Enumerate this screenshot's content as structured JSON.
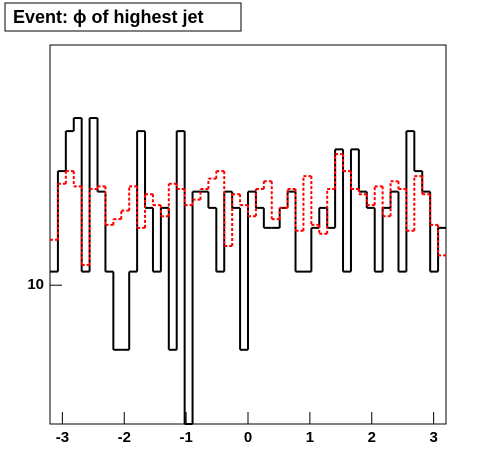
{
  "chart_data": {
    "type": "histogram",
    "title": "Event: ϕ of highest jet",
    "bins": [
      -3.2,
      -3.072,
      -2.944,
      -2.816,
      -2.688,
      -2.56,
      -2.432,
      -2.304,
      -2.176,
      -2.048,
      -1.92,
      -1.792,
      -1.664,
      -1.536,
      -1.408,
      -1.28,
      -1.152,
      -1.024,
      -0.896,
      -0.768,
      -0.64,
      -0.512,
      -0.384,
      -0.256,
      -0.128,
      0,
      0.128,
      0.256,
      0.384,
      0.512,
      0.64,
      0.768,
      0.896,
      1.024,
      1.152,
      1.28,
      1.408,
      1.536,
      1.664,
      1.792,
      1.92,
      2.048,
      2.176,
      2.304,
      2.432,
      2.56,
      2.688,
      2.816,
      2.944,
      3.072,
      3.2
    ],
    "series": [
      {
        "color": "#000000",
        "dashed": false,
        "values": [
          10.4,
          13.9,
          15.6,
          16.2,
          10.4,
          16.2,
          13.1,
          10.4,
          8.3,
          8.3,
          10.4,
          15.6,
          12.5,
          10.4,
          12.5,
          8.3,
          15.6,
          6.7,
          13.1,
          13.1,
          12.5,
          10.4,
          13.1,
          12.5,
          8.3,
          13.1,
          12.5,
          11.8,
          11.8,
          12.5,
          13.1,
          10.4,
          10.4,
          11.8,
          12.5,
          11.8,
          14.8,
          10.4,
          14.8,
          13.1,
          12.5,
          10.4,
          12.5,
          13.1,
          10.4,
          15.6,
          13.9,
          13.1,
          10.4,
          11.8
        ]
      },
      {
        "color": "#ff0000",
        "dashed": true,
        "values": [
          11.4,
          13.4,
          13.9,
          13.3,
          10.6,
          13.2,
          13.3,
          11.9,
          12.1,
          12.4,
          13.3,
          11.8,
          13.0,
          12.6,
          12.2,
          13.4,
          13.2,
          12.6,
          12.8,
          13.2,
          13.6,
          13.9,
          11.2,
          13.0,
          12.6,
          12.2,
          13.2,
          13.5,
          12.1,
          12.5,
          13.2,
          11.7,
          13.7,
          11.9,
          11.6,
          13.2,
          14.6,
          13.9,
          13.2,
          13.0,
          12.6,
          13.3,
          12.2,
          13.5,
          13.2,
          11.7,
          13.7,
          13.0,
          11.9,
          10.9
        ]
      }
    ],
    "xlim": [
      -3.2,
      3.2
    ],
    "xticks": [
      -3,
      -2,
      -1,
      0,
      1,
      2,
      3
    ],
    "ylim": [
      6.7,
      20
    ],
    "yticks": [
      10
    ],
    "log_y": true
  }
}
